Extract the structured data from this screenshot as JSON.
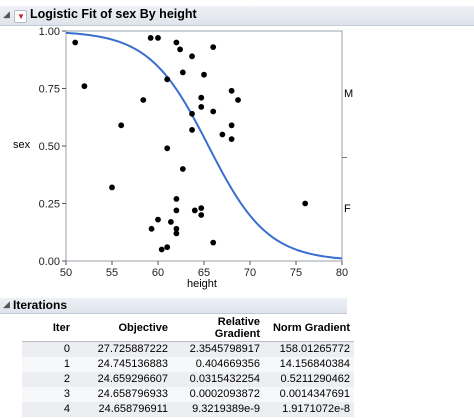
{
  "report": {
    "title": "Logistic Fit of sex By height"
  },
  "chart_data": {
    "type": "scatter",
    "xlabel": "height",
    "ylabel": "sex",
    "xlim": [
      50,
      80
    ],
    "ylim": [
      0,
      1
    ],
    "xticks": [
      "50",
      "55",
      "60",
      "65",
      "70",
      "75",
      "80"
    ],
    "yticks": [
      "0.00",
      "0.25",
      "0.50",
      "0.75",
      "1.00"
    ],
    "right_labels": [
      {
        "label": "M",
        "y": 0.725
      },
      {
        "label": "F",
        "y": 0.225
      }
    ],
    "grid": false,
    "points": [
      [
        51,
        0.95
      ],
      [
        52,
        0.76
      ],
      [
        56,
        0.59
      ],
      [
        55,
        0.32
      ],
      [
        58.4,
        0.7
      ],
      [
        59.2,
        0.97
      ],
      [
        60,
        0.97
      ],
      [
        60.4,
        0.05
      ],
      [
        61,
        0.06
      ],
      [
        61,
        0.79
      ],
      [
        61,
        0.49
      ],
      [
        62,
        0.95
      ],
      [
        62.4,
        0.92
      ],
      [
        62.7,
        0.82
      ],
      [
        62.7,
        0.4
      ],
      [
        63.7,
        0.89
      ],
      [
        63.7,
        0.57
      ],
      [
        63.7,
        0.64
      ],
      [
        64,
        0.22
      ],
      [
        64.7,
        0.67
      ],
      [
        64.7,
        0.71
      ],
      [
        64.7,
        0.23
      ],
      [
        64.7,
        0.2
      ],
      [
        65,
        0.81
      ],
      [
        66,
        0.08
      ],
      [
        66,
        0.93
      ],
      [
        66,
        0.65
      ],
      [
        67,
        0.55
      ],
      [
        68,
        0.74
      ],
      [
        68,
        0.59
      ],
      [
        68,
        0.53
      ],
      [
        68.7,
        0.7
      ],
      [
        76,
        0.25
      ],
      [
        59.3,
        0.14
      ],
      [
        60,
        0.18
      ],
      [
        61.4,
        0.17
      ],
      [
        62,
        0.27
      ],
      [
        62,
        0.22
      ],
      [
        62,
        0.12
      ],
      [
        62,
        0.14
      ]
    ],
    "curve": {
      "type": "logistic",
      "series_color": "#3a6ed0"
    }
  },
  "iterations": {
    "title": "Iterations",
    "columns": [
      "Iter",
      "Objective",
      "Relative Gradient",
      "Norm Gradient"
    ],
    "rows": [
      [
        "0",
        "27.725887222",
        "2.3545798917",
        "158.01265772"
      ],
      [
        "1",
        "24.745136883",
        "0.404669356",
        "14.156840384"
      ],
      [
        "2",
        "24.659296607",
        "0.0315432254",
        "0.5211290462"
      ],
      [
        "3",
        "24.658796933",
        "0.0002093872",
        "0.0014347691"
      ],
      [
        "4",
        "24.658796911",
        "9.3219389e-9",
        "1.9171072e-8"
      ]
    ]
  }
}
